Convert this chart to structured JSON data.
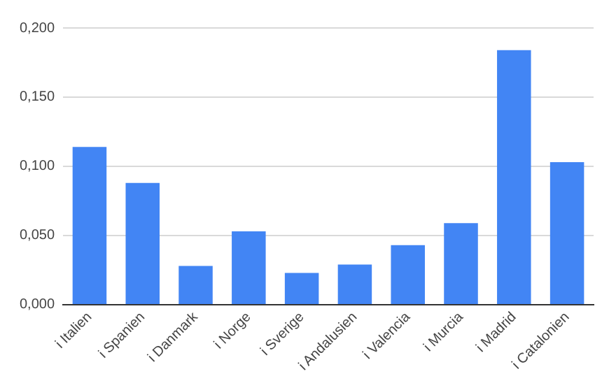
{
  "chart_data": {
    "type": "bar",
    "categories": [
      "i Italien",
      "i Spanien",
      "i Danmark",
      "i Norge",
      "i Sverige",
      "i Andalusien",
      "i Valencia",
      "i Murcia",
      "i Madrid",
      "i Catalonien"
    ],
    "values": [
      0.114,
      0.088,
      0.028,
      0.053,
      0.023,
      0.029,
      0.043,
      0.059,
      0.184,
      0.103
    ],
    "color": "#4285f4",
    "ylim": [
      0,
      0.2
    ],
    "yticks": [
      {
        "value": 0,
        "label": "0,000"
      },
      {
        "value": 0.05,
        "label": "0,050"
      },
      {
        "value": 0.1,
        "label": "0,100"
      },
      {
        "value": 0.15,
        "label": "0,150"
      },
      {
        "value": 0.2,
        "label": "0,200"
      }
    ],
    "grid": "y",
    "legend": false
  }
}
